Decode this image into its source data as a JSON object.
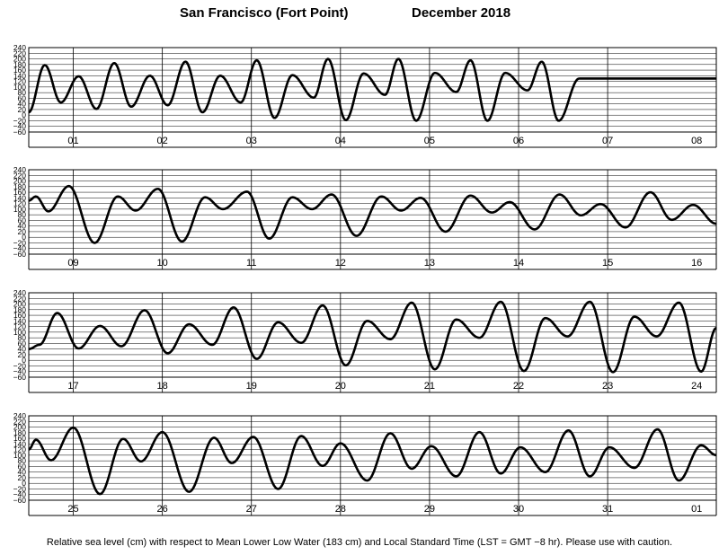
{
  "title_place": "San Francisco (Fort Point)",
  "title_month": "December   2018",
  "footer": "Relative sea level (cm) with respect to Mean Lower Low Water (183 cm) and Local Standard Time (LST = GMT −8 hr). Please use with caution.",
  "chart_data": {
    "type": "line",
    "y_ticks": [
      "240",
      "220",
      "200",
      "180",
      "160",
      "140",
      "120",
      "100",
      "80",
      "60",
      "40",
      "20",
      "0",
      "−20",
      "−40",
      "−60"
    ],
    "ylim": [
      -60,
      240
    ],
    "grid": true,
    "line_color": "#000000",
    "panels": [
      {
        "days": [
          "01",
          "02",
          "03",
          "04",
          "05",
          "06",
          "07",
          "08"
        ],
        "extrema": [
          [
            0.0,
            10
          ],
          [
            0.18,
            178
          ],
          [
            0.36,
            45
          ],
          [
            0.56,
            138
          ],
          [
            0.76,
            22
          ],
          [
            0.96,
            185
          ],
          [
            1.15,
            30
          ],
          [
            1.36,
            140
          ],
          [
            1.56,
            35
          ],
          [
            1.76,
            190
          ],
          [
            1.95,
            10
          ],
          [
            2.15,
            140
          ],
          [
            2.38,
            45
          ],
          [
            2.56,
            195
          ],
          [
            2.76,
            -10
          ],
          [
            2.96,
            142
          ],
          [
            3.2,
            62
          ],
          [
            3.36,
            200
          ],
          [
            3.56,
            -18
          ],
          [
            3.76,
            148
          ],
          [
            4.0,
            72
          ],
          [
            4.15,
            200
          ],
          [
            4.35,
            -20
          ],
          [
            4.56,
            150
          ],
          [
            4.8,
            82
          ],
          [
            4.96,
            195
          ],
          [
            5.15,
            -20
          ],
          [
            5.35,
            150
          ],
          [
            5.6,
            88
          ],
          [
            5.76,
            190
          ],
          [
            5.95,
            -20
          ],
          [
            6.18,
            130
          ]
        ]
      },
      {
        "days": [
          "09",
          "10",
          "11",
          "12",
          "13",
          "14",
          "15",
          "16"
        ],
        "extrema": [
          [
            0.0,
            130
          ],
          [
            0.08,
            145
          ],
          [
            0.22,
            92
          ],
          [
            0.45,
            182
          ],
          [
            0.74,
            -20
          ],
          [
            1.0,
            145
          ],
          [
            1.2,
            95
          ],
          [
            1.45,
            172
          ],
          [
            1.72,
            -15
          ],
          [
            1.98,
            142
          ],
          [
            2.18,
            100
          ],
          [
            2.45,
            162
          ],
          [
            2.7,
            -5
          ],
          [
            2.96,
            142
          ],
          [
            3.18,
            100
          ],
          [
            3.4,
            152
          ],
          [
            3.68,
            5
          ],
          [
            3.96,
            145
          ],
          [
            4.18,
            95
          ],
          [
            4.4,
            140
          ],
          [
            4.68,
            20
          ],
          [
            4.96,
            148
          ],
          [
            5.2,
            88
          ],
          [
            5.4,
            125
          ],
          [
            5.68,
            28
          ],
          [
            5.96,
            152
          ],
          [
            6.2,
            78
          ],
          [
            6.42,
            118
          ],
          [
            6.7,
            35
          ],
          [
            6.98,
            160
          ],
          [
            7.22,
            62
          ],
          [
            7.46,
            115
          ],
          [
            7.72,
            48
          ]
        ]
      },
      {
        "days": [
          "17",
          "18",
          "19",
          "20",
          "21",
          "22",
          "23",
          "24"
        ],
        "extrema": [
          [
            0.0,
            40
          ],
          [
            0.12,
            55
          ],
          [
            0.32,
            168
          ],
          [
            0.56,
            42
          ],
          [
            0.8,
            122
          ],
          [
            1.04,
            50
          ],
          [
            1.3,
            178
          ],
          [
            1.56,
            25
          ],
          [
            1.8,
            128
          ],
          [
            2.06,
            55
          ],
          [
            2.3,
            188
          ],
          [
            2.56,
            5
          ],
          [
            2.8,
            135
          ],
          [
            3.06,
            62
          ],
          [
            3.3,
            195
          ],
          [
            3.56,
            -18
          ],
          [
            3.8,
            140
          ],
          [
            4.06,
            75
          ],
          [
            4.3,
            205
          ],
          [
            4.56,
            -32
          ],
          [
            4.8,
            145
          ],
          [
            5.06,
            80
          ],
          [
            5.3,
            208
          ],
          [
            5.56,
            -38
          ],
          [
            5.8,
            150
          ],
          [
            6.05,
            85
          ],
          [
            6.3,
            208
          ],
          [
            6.56,
            -42
          ],
          [
            6.8,
            155
          ],
          [
            7.05,
            85
          ],
          [
            7.3,
            205
          ],
          [
            7.55,
            -40
          ],
          [
            7.72,
            115
          ]
        ]
      },
      {
        "days": [
          "25",
          "26",
          "27",
          "28",
          "29",
          "30",
          "31",
          "01"
        ],
        "extrema": [
          [
            0.0,
            120
          ],
          [
            0.08,
            155
          ],
          [
            0.25,
            82
          ],
          [
            0.5,
            198
          ],
          [
            0.8,
            -38
          ],
          [
            1.06,
            158
          ],
          [
            1.26,
            78
          ],
          [
            1.5,
            182
          ],
          [
            1.8,
            -30
          ],
          [
            2.08,
            162
          ],
          [
            2.28,
            72
          ],
          [
            2.52,
            165
          ],
          [
            2.8,
            -20
          ],
          [
            3.06,
            168
          ],
          [
            3.3,
            62
          ],
          [
            3.5,
            142
          ],
          [
            3.8,
            10
          ],
          [
            4.06,
            178
          ],
          [
            4.3,
            52
          ],
          [
            4.52,
            132
          ],
          [
            4.8,
            25
          ],
          [
            5.06,
            182
          ],
          [
            5.3,
            35
          ],
          [
            5.52,
            128
          ],
          [
            5.8,
            40
          ],
          [
            6.06,
            188
          ],
          [
            6.3,
            25
          ],
          [
            6.52,
            128
          ],
          [
            6.8,
            55
          ],
          [
            7.06,
            192
          ],
          [
            7.3,
            10
          ],
          [
            7.55,
            135
          ],
          [
            7.72,
            100
          ]
        ]
      }
    ]
  }
}
